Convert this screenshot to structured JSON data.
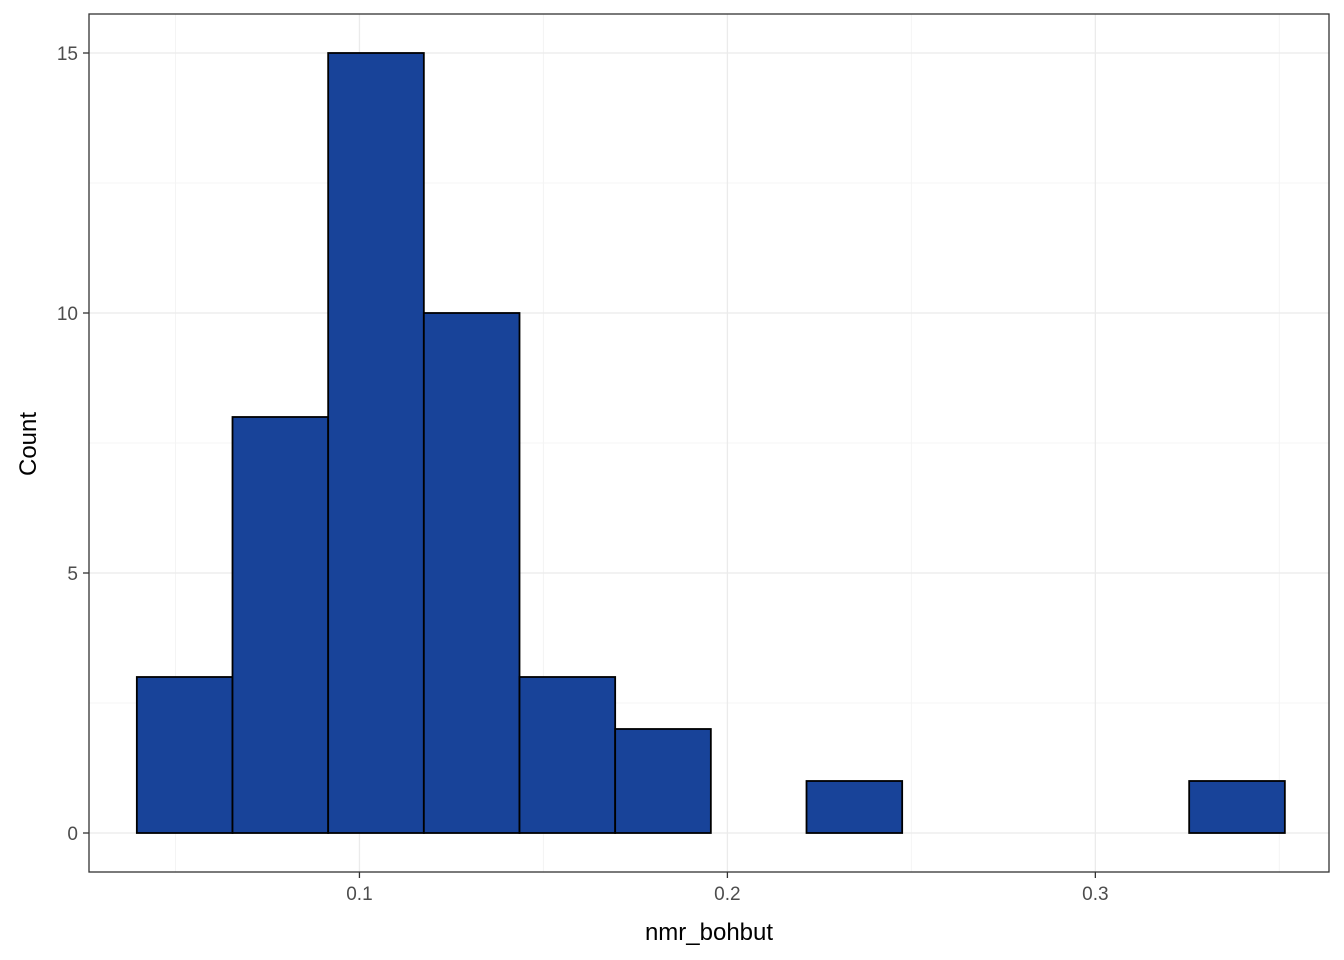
{
  "chart_data": {
    "type": "bar",
    "subtype": "histogram",
    "xlabel": "nmr_bohbut",
    "ylabel": "Count",
    "xlim": [
      0.0265,
      0.3635
    ],
    "ylim": [
      -0.75,
      15.75
    ],
    "x_ticks": [
      0.1,
      0.2,
      0.3
    ],
    "x_tick_labels": [
      "0.1",
      "0.2",
      "0.3"
    ],
    "y_ticks": [
      0,
      5,
      10,
      15
    ],
    "y_tick_labels": [
      "0",
      "5",
      "10",
      "15"
    ],
    "bin_edges": [
      0.0395,
      0.0655,
      0.0915,
      0.1175,
      0.1435,
      0.1695,
      0.1955,
      0.2215,
      0.2475,
      0.2735,
      0.2995,
      0.3255,
      0.3515
    ],
    "values": [
      3,
      8,
      15,
      10,
      3,
      2,
      0,
      1,
      0,
      0,
      0,
      1
    ],
    "grid": true,
    "legend": "none",
    "colors": {
      "bar_fill": "#184399",
      "bar_stroke": "#000000",
      "grid_major": "#EBEBEB",
      "grid_minor": "#F4F4F4",
      "panel_border": "#333333",
      "background": "#FFFFFF"
    }
  }
}
